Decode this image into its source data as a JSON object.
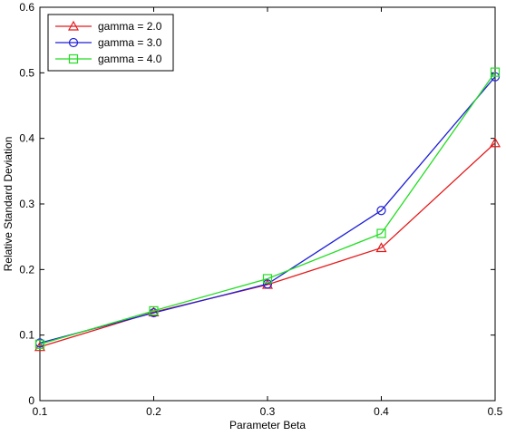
{
  "chart_data": {
    "type": "line",
    "xlabel": "Parameter Beta",
    "ylabel": "Relative Standard Deviation",
    "xlim": [
      0.1,
      0.5
    ],
    "ylim": [
      0,
      0.6
    ],
    "x_ticks": [
      "0.1",
      "0.2",
      "0.3",
      "0.4",
      "0.5"
    ],
    "y_ticks": [
      "0",
      "0.1",
      "0.2",
      "0.3",
      "0.4",
      "0.5",
      "0.6"
    ],
    "grid": false,
    "legend_position": "top-left",
    "x": [
      0.1,
      0.2,
      0.3,
      0.4,
      0.5
    ],
    "series": [
      {
        "name": "gamma = 2.0",
        "color": "#e41a1c",
        "marker": "triangle",
        "values": [
          0.082,
          0.135,
          0.177,
          0.233,
          0.393
        ]
      },
      {
        "name": "gamma = 3.0",
        "color": "#1f1fd6",
        "marker": "circle",
        "values": [
          0.088,
          0.134,
          0.178,
          0.29,
          0.494
        ]
      },
      {
        "name": "gamma = 4.0",
        "color": "#22dd22",
        "marker": "square",
        "values": [
          0.086,
          0.137,
          0.186,
          0.255,
          0.501
        ]
      }
    ]
  }
}
